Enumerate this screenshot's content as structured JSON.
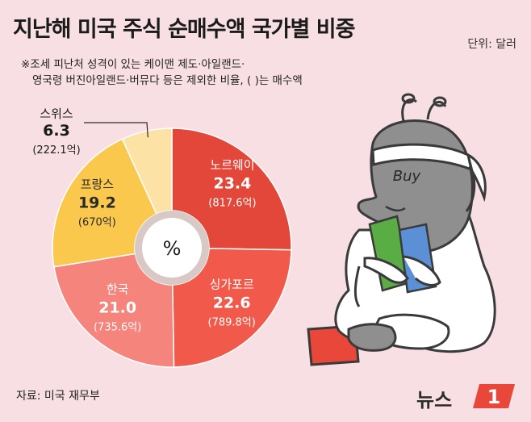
{
  "header": {
    "title": "지난해 미국 주식 순매수액 국가별 비중",
    "unit": "단위: 달러"
  },
  "note": {
    "line1": "※조세 피난처 성격이 있는 케이맨 제도·아일랜드·",
    "line2": "영국령 버진아일랜드·버뮤다 등은 제외한 비율, ( )는 매수액"
  },
  "source": "자료: 미국 재무부",
  "logo": {
    "text": "뉴스",
    "mark": "1"
  },
  "colors": {
    "background": "#f7dfe3",
    "norway": "#e2473a",
    "singapore": "#f15a4a",
    "korea": "#f5847d",
    "france": "#fbc84e",
    "switzerland": "#fde2a6",
    "center": "#ffffff",
    "ring": "#d9c9c6"
  },
  "chart_data": {
    "type": "pie",
    "center_label": "%",
    "slices": [
      {
        "name": "노르웨이",
        "value": 23.4,
        "amount": "(817.6억)",
        "color": "#e2473a"
      },
      {
        "name": "싱가포르",
        "value": 22.6,
        "amount": "(789.8억)",
        "color": "#f15a4a"
      },
      {
        "name": "한국",
        "value": 21.0,
        "amount": "(735.6억)",
        "color": "#f5847d"
      },
      {
        "name": "프랑스",
        "value": 19.2,
        "amount": "(670억)",
        "color": "#fbc84e"
      },
      {
        "name": "스위스",
        "value": 6.3,
        "amount": "(222.1억)",
        "color": "#fde2a6"
      }
    ]
  },
  "illustration": {
    "hat_text": "Buy"
  }
}
